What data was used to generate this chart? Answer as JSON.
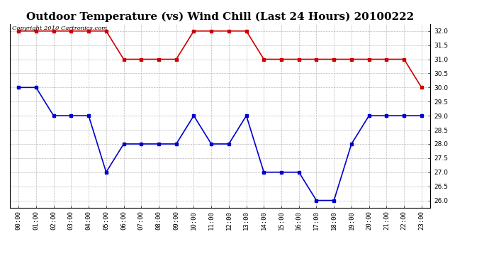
{
  "title": "Outdoor Temperature (vs) Wind Chill (Last 24 Hours) 20100222",
  "copyright_text": "Copyright 2010 Cartronics.com",
  "x_labels": [
    "00:00",
    "01:00",
    "02:00",
    "03:00",
    "04:00",
    "05:00",
    "06:00",
    "07:00",
    "08:00",
    "09:00",
    "10:00",
    "11:00",
    "12:00",
    "13:00",
    "14:00",
    "15:00",
    "16:00",
    "17:00",
    "18:00",
    "19:00",
    "20:00",
    "21:00",
    "22:00",
    "23:00"
  ],
  "red_data": [
    32.0,
    32.0,
    32.0,
    32.0,
    32.0,
    32.0,
    31.0,
    31.0,
    31.0,
    31.0,
    32.0,
    32.0,
    32.0,
    32.0,
    31.0,
    31.0,
    31.0,
    31.0,
    31.0,
    31.0,
    31.0,
    31.0,
    31.0,
    30.0
  ],
  "blue_data": [
    30.0,
    30.0,
    29.0,
    29.0,
    29.0,
    27.0,
    28.0,
    28.0,
    28.0,
    28.0,
    29.0,
    28.0,
    28.0,
    29.0,
    27.0,
    27.0,
    27.0,
    26.0,
    26.0,
    28.0,
    29.0,
    29.0,
    29.0,
    29.0
  ],
  "ylim": [
    25.75,
    32.25
  ],
  "yticks": [
    26.0,
    26.5,
    27.0,
    27.5,
    28.0,
    28.5,
    29.0,
    29.5,
    30.0,
    30.5,
    31.0,
    31.5,
    32.0
  ],
  "red_color": "#cc0000",
  "blue_color": "#0000cc",
  "bg_color": "#ffffff",
  "grid_color": "#aaaaaa",
  "title_fontsize": 11,
  "copyright_fontsize": 6,
  "tick_fontsize": 6.5,
  "marker_size": 3
}
